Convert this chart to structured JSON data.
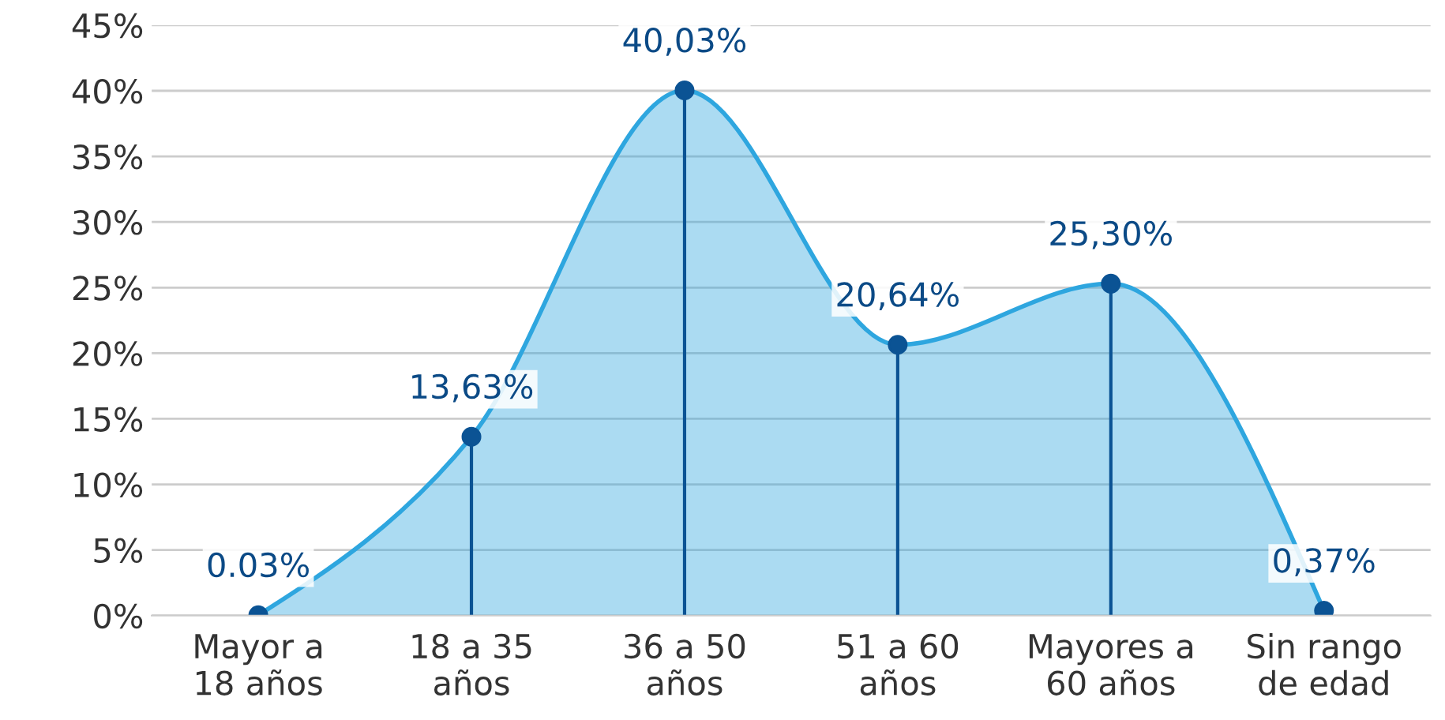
{
  "chart_data": {
    "type": "area",
    "categories": [
      "Mayor a\n18 años",
      "18 a 35\naños",
      "36 a 50\naños",
      "51 a 60\naños",
      "Mayores a\n60 años",
      "Sin rango\nde edad"
    ],
    "series": [
      {
        "color": "#2ea6df",
        "values": [
          0.03,
          13.63,
          40.03,
          20.64,
          25.3,
          0.37
        ]
      },
      {
        "type": "lollipop",
        "color": "#0b5394",
        "values": [
          0.03,
          13.63,
          40.03,
          20.64,
          25.3,
          0.37
        ],
        "value_labels": [
          "0.03%",
          "13,63%",
          "40,03%",
          "20,64%",
          "25,30%",
          "0,37%"
        ]
      }
    ],
    "ylim": [
      0,
      45
    ],
    "yticks": [
      {
        "value": 0,
        "label": "0%"
      },
      {
        "value": 5,
        "label": "5%"
      },
      {
        "value": 10,
        "label": "10%"
      },
      {
        "value": 15,
        "label": "15%"
      },
      {
        "value": 20,
        "label": "20%"
      },
      {
        "value": 25,
        "label": "25%"
      },
      {
        "value": 30,
        "label": "30%"
      },
      {
        "value": 35,
        "label": "35%"
      },
      {
        "value": 40,
        "label": "40%"
      },
      {
        "value": 45,
        "label": "45%"
      }
    ],
    "grid": "y",
    "legend": false
  }
}
